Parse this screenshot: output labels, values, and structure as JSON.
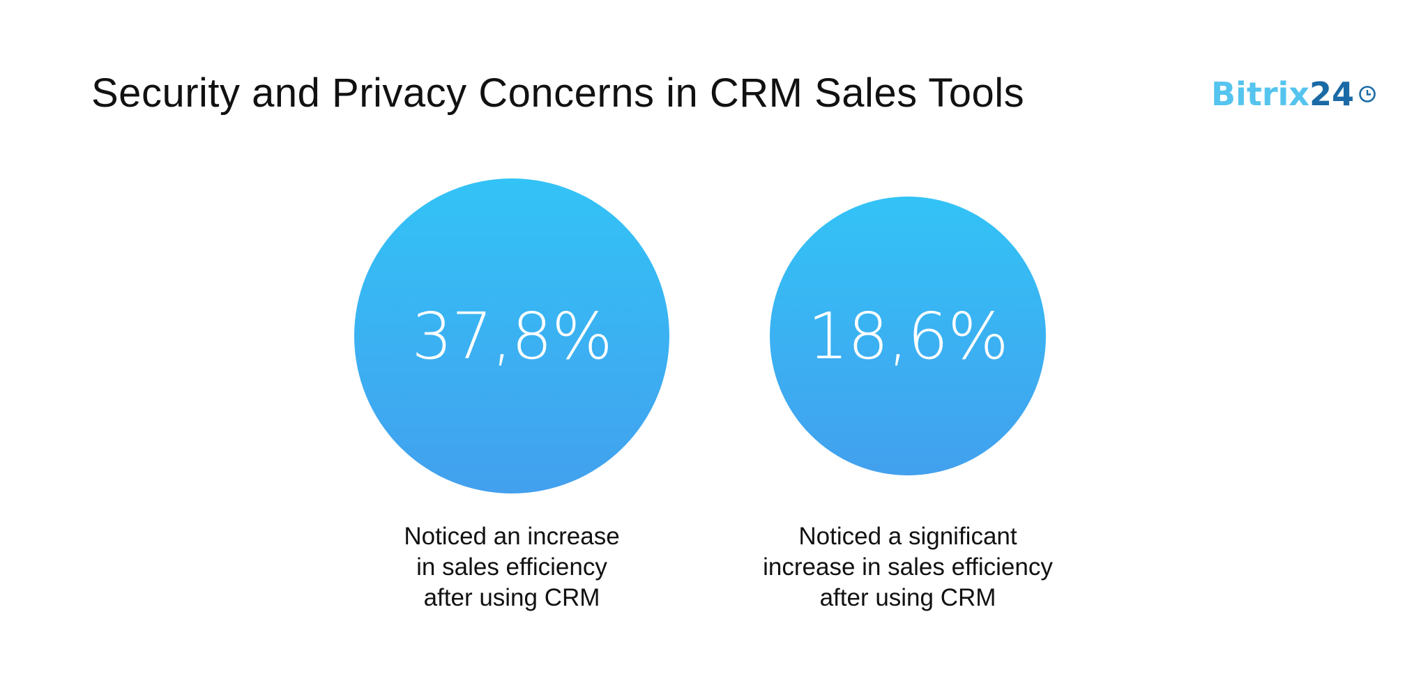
{
  "title": "Security and Privacy Concerns in CRM Sales Tools",
  "logo": {
    "brand": "Bitrix",
    "number": "24",
    "icon": "clock-icon",
    "colors": {
      "brand": "#55c4ee",
      "number": "#1a6aa5"
    }
  },
  "chart_data": {
    "type": "bubble-stat",
    "title": "Security and Privacy Concerns in CRM Sales Tools",
    "colors": {
      "gradient_top": "#33c3f6",
      "gradient_bottom": "#42a0ee"
    },
    "items": [
      {
        "value": 37.8,
        "display": "37,8%",
        "label": [
          "Noticed an increase",
          "in sales efficiency",
          "after using CRM"
        ]
      },
      {
        "value": 18.6,
        "display": "18,6%",
        "label": [
          "Noticed a significant",
          "increase in sales efficiency",
          "after using CRM"
        ]
      }
    ]
  }
}
